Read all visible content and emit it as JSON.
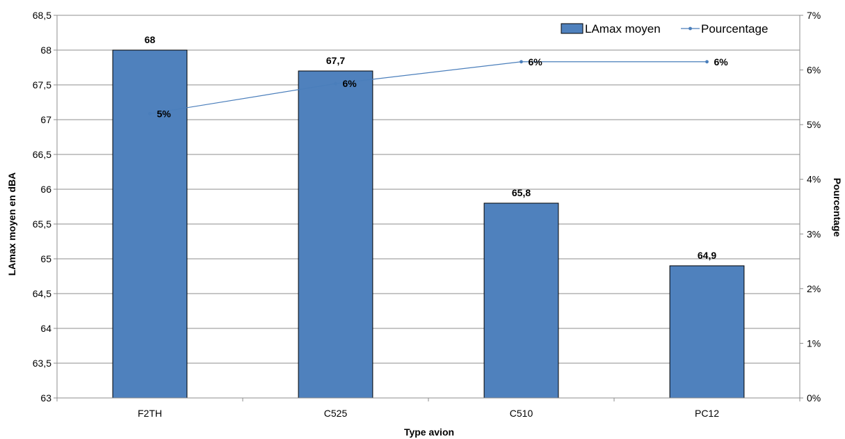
{
  "chart_data": {
    "type": "bar",
    "title": "",
    "xlabel": "Type avion",
    "ylabel": "LAmax moyen en dBA",
    "y2label": "Pourcentage",
    "categories": [
      "F2TH",
      "C525",
      "C510",
      "PC12"
    ],
    "series": [
      {
        "name": "LAmax moyen",
        "type": "bar",
        "axis": "left",
        "values": [
          68,
          67.7,
          65.8,
          64.9
        ],
        "labels": [
          "68",
          "67,7",
          "65,8",
          "64,9"
        ],
        "color": "#4f81bd"
      },
      {
        "name": "Pourcentage",
        "type": "line",
        "axis": "right",
        "values": [
          5.2,
          5.75,
          6.15,
          6.15
        ],
        "labels": [
          "5%",
          "6%",
          "6%",
          "6%"
        ],
        "color": "#4a7ebb"
      }
    ],
    "ylim": [
      63,
      68.5
    ],
    "yticks": [
      "63",
      "63,5",
      "64",
      "64,5",
      "65",
      "65,5",
      "66",
      "66,5",
      "67",
      "67,5",
      "68",
      "68,5"
    ],
    "y2lim": [
      0,
      7
    ],
    "y2ticks": [
      "0%",
      "1%",
      "2%",
      "3%",
      "4%",
      "5%",
      "6%",
      "7%"
    ],
    "grid": true,
    "legend_position": "top-right"
  }
}
